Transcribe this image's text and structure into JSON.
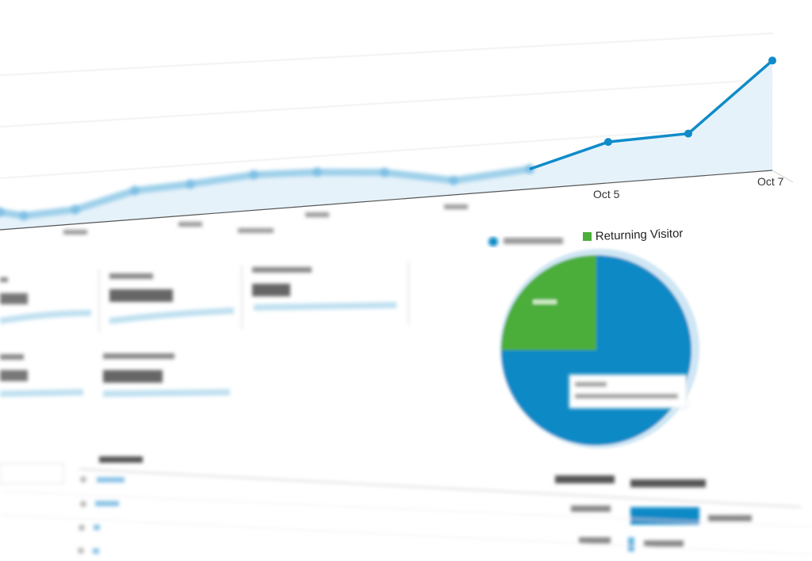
{
  "chart_data": [
    {
      "type": "area",
      "title": "",
      "xlabel": "",
      "ylabel": "",
      "values": [
        16,
        11,
        13,
        26,
        28,
        32,
        30,
        25,
        13,
        18,
        37,
        39,
        99
      ],
      "tick_labels": [
        {
          "index": 10,
          "label": "Oct 5"
        },
        {
          "index": 12,
          "label": "Oct 7"
        }
      ],
      "grid": true,
      "line_color": "#0f8bc9",
      "fill_color": "#e6f2fa"
    },
    {
      "type": "pie",
      "legend_placement": "top",
      "slices": [
        {
          "name": "",
          "value": 75,
          "color": "#0a8ac6"
        },
        {
          "name": "Returning Visitor",
          "value": 25,
          "color": "#4cae3a"
        }
      ]
    }
  ]
}
